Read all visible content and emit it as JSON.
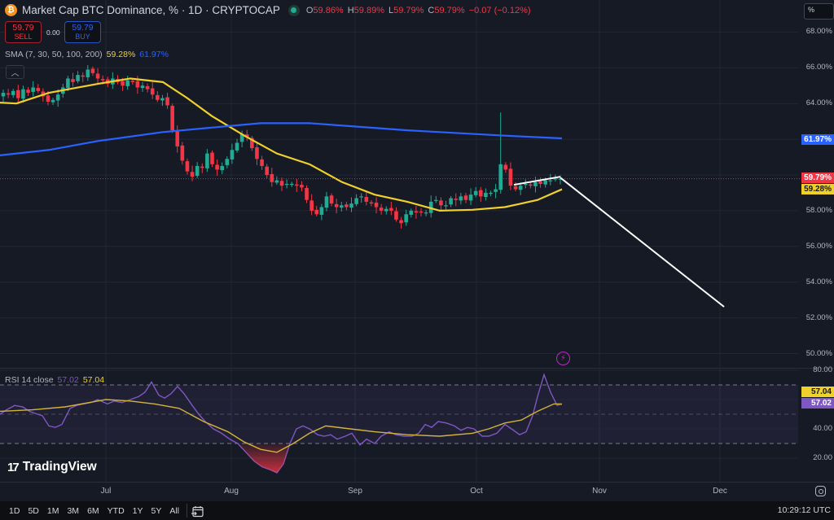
{
  "header": {
    "symbol_icon": "bitcoin-icon",
    "title": "Market Cap BTC Dominance, % · 1D · CRYPTOCAP",
    "market_status_icon": "market-open-dot-icon",
    "ohlc": {
      "open_label": "O",
      "open": "59.86%",
      "high_label": "H",
      "high": "59.89%",
      "low_label": "L",
      "low": "59.79%",
      "close_label": "C",
      "close": "59.79%",
      "change": "−0.07 (−0.12%)"
    },
    "sell": {
      "price": "59.79",
      "label": "SELL"
    },
    "spread": "0.00",
    "buy": {
      "price": "59.79",
      "label": "BUY"
    }
  },
  "sma_legend": {
    "name": "SMA (7, 30, 50, 100, 200)",
    "value1": "59.28%",
    "value2": "61.97%"
  },
  "rsi_legend": {
    "name": "RSI 14 close",
    "rsi": "57.02",
    "ma": "57.04"
  },
  "branding": {
    "logo_mark": "17",
    "logo_text": "TradingView"
  },
  "price_axis": {
    "unit_button": "%",
    "labels": [
      "68.00%",
      "66.00%",
      "64.00%",
      "62.00%",
      "58.00%",
      "56.00%",
      "54.00%",
      "52.00%",
      "50.00%"
    ],
    "tags": {
      "sma200": {
        "text": "61.97%",
        "bg": "#2962ff",
        "fg": "#ffffff"
      },
      "last_price": {
        "text": "59.79%",
        "bg": "#f23645",
        "fg": "#ffffff"
      },
      "sma50": {
        "text": "59.28%",
        "bg": "#f0d02b",
        "fg": "#131722"
      }
    }
  },
  "rsi_axis": {
    "labels": [
      "80.00",
      "40.00",
      "20.00"
    ],
    "tags": {
      "ma": {
        "text": "57.04",
        "bg": "#f0d02b",
        "fg": "#131722"
      },
      "rsi": {
        "text": "57.02",
        "bg": "#7e57c2",
        "fg": "#ffffff"
      }
    }
  },
  "time_axis": {
    "labels": [
      "Jul",
      "Aug",
      "Sep",
      "Oct",
      "Nov",
      "Dec"
    ]
  },
  "bottom_bar": {
    "ranges": [
      "1D",
      "5D",
      "1M",
      "3M",
      "6M",
      "YTD",
      "1Y",
      "5Y",
      "All"
    ],
    "clock": "10:29:12 UTC"
  },
  "colors": {
    "background": "#161a25",
    "up": "#22ab94",
    "down": "#f23645",
    "sma_fast": "#f0d02b",
    "sma_slow": "#2962ff",
    "rsi": "#7e57c2",
    "rsi_ma": "#d4b33a",
    "drawing": "#ffffff"
  },
  "chart_data": [
    {
      "type": "candlestick",
      "title": "Market Cap BTC Dominance, % · 1D · CRYPTOCAP",
      "xlabel": "",
      "ylabel": "%",
      "ylim": [
        49.2,
        69.0
      ],
      "x_ticks": [
        "Jul",
        "Aug",
        "Sep",
        "Oct",
        "Nov",
        "Dec"
      ],
      "y_ticks": [
        "50.00%",
        "52.00%",
        "54.00%",
        "56.00%",
        "58.00%",
        "60.00%",
        "62.00%",
        "64.00%",
        "66.00%",
        "68.00%"
      ],
      "grid": true,
      "last": {
        "open": 59.86,
        "high": 59.89,
        "low": 59.79,
        "close": 59.79,
        "change": -0.07,
        "change_pct": -0.12
      },
      "series": [
        {
          "name": "BTC Dominance (approx. daily closes)",
          "color": "#22ab94/#f23645",
          "x_start": "2024-06-01",
          "x_end": "2024-10-22",
          "values": [
            64.6,
            64.5,
            64.7,
            64.3,
            64.8,
            64.6,
            64.9,
            64.7,
            64.4,
            64.1,
            64.2,
            64.5,
            64.9,
            65.4,
            65.2,
            65.6,
            65.5,
            65.9,
            65.7,
            65.4,
            65.3,
            65.1,
            65.4,
            65.2,
            65.0,
            65.3,
            65.2,
            64.9,
            65.0,
            64.8,
            64.5,
            64.2,
            64.3,
            63.9,
            62.5,
            61.6,
            60.8,
            60.2,
            59.9,
            60.5,
            60.4,
            61.2,
            60.6,
            60.3,
            60.5,
            60.9,
            61.4,
            61.8,
            62.3,
            62.1,
            61.5,
            60.9,
            60.5,
            60.0,
            59.6,
            59.7,
            59.4,
            59.5,
            59.5,
            59.4,
            59.3,
            58.6,
            58.0,
            57.8,
            58.2,
            58.8,
            58.4,
            58.2,
            58.3,
            58.2,
            58.4,
            58.7,
            58.8,
            58.5,
            58.4,
            58.2,
            58.0,
            58.1,
            58.0,
            57.5,
            57.3,
            57.8,
            58.0,
            57.9,
            57.9,
            57.9,
            58.5,
            58.6,
            58.3,
            58.3,
            58.7,
            58.6,
            58.8,
            58.6,
            58.9,
            59.1,
            58.8,
            59.0,
            59.0,
            59.2,
            60.6,
            60.3,
            59.4,
            59.2,
            59.4,
            59.5,
            59.4,
            59.6,
            59.5,
            59.7,
            59.7,
            59.8,
            59.79
          ]
        },
        {
          "name": "SMA 50",
          "color": "#f0d02b",
          "last": 59.28
        },
        {
          "name": "SMA 200",
          "color": "#2962ff",
          "last": 61.97
        }
      ],
      "annotations": [
        "Rising wedge trendlines near Oct",
        "Projected down-line from ~59.8% (late Oct) to ~52.5% (mid Nov)"
      ]
    },
    {
      "type": "line",
      "title": "RSI 14 close",
      "ylim": [
        10,
        82
      ],
      "y_ticks": [
        "20.00",
        "40.00",
        "80.00"
      ],
      "bands": {
        "upper": 70,
        "middle": 50,
        "lower": 30
      },
      "series": [
        {
          "name": "RSI",
          "color": "#7e57c2",
          "last": 57.02
        },
        {
          "name": "RSI MA",
          "color": "#d4b33a",
          "last": 57.04
        }
      ]
    }
  ]
}
